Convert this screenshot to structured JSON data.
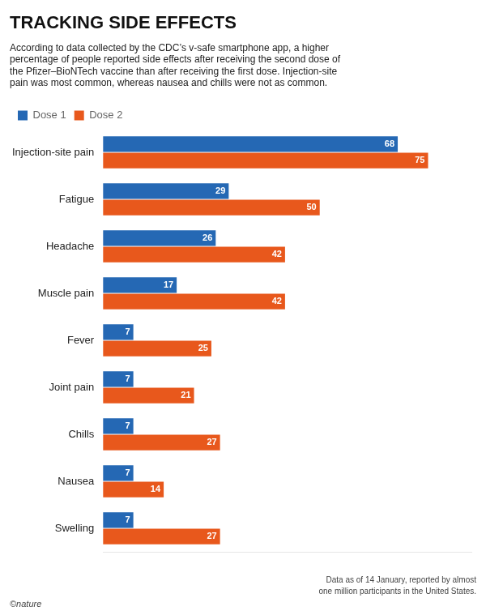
{
  "chart_data": {
    "type": "bar",
    "orientation": "horizontal",
    "title": "TRACKING SIDE EFFECTS",
    "subtitle": "According to data collected by the CDC’s v-safe smartphone app, a higher\npercentage of people reported side effects after receiving the second dose of\nthe Pfizer–BioNTech vaccine than after receiving the first dose. Injection-site\npain was most common, whereas nausea and chills were not as common.",
    "categories": [
      "Injection-site pain",
      "Fatigue",
      "Headache",
      "Muscle pain",
      "Fever",
      "Joint pain",
      "Chills",
      "Nausea",
      "Swelling"
    ],
    "series": [
      {
        "name": "Dose 1",
        "color": "#2568b4",
        "values": [
          68,
          29,
          26,
          17,
          7,
          7,
          7,
          7,
          7
        ]
      },
      {
        "name": "Dose 2",
        "color": "#e8581c",
        "values": [
          75,
          50,
          42,
          42,
          25,
          21,
          27,
          14,
          27
        ]
      }
    ],
    "xlim": [
      0,
      85
    ],
    "tick_labels": "y",
    "grid": false,
    "legend": "top-left",
    "data_labels": true,
    "annotations": [
      "Data as of 14 January, reported by almost\none million participants in the United States.",
      "©nature"
    ]
  }
}
